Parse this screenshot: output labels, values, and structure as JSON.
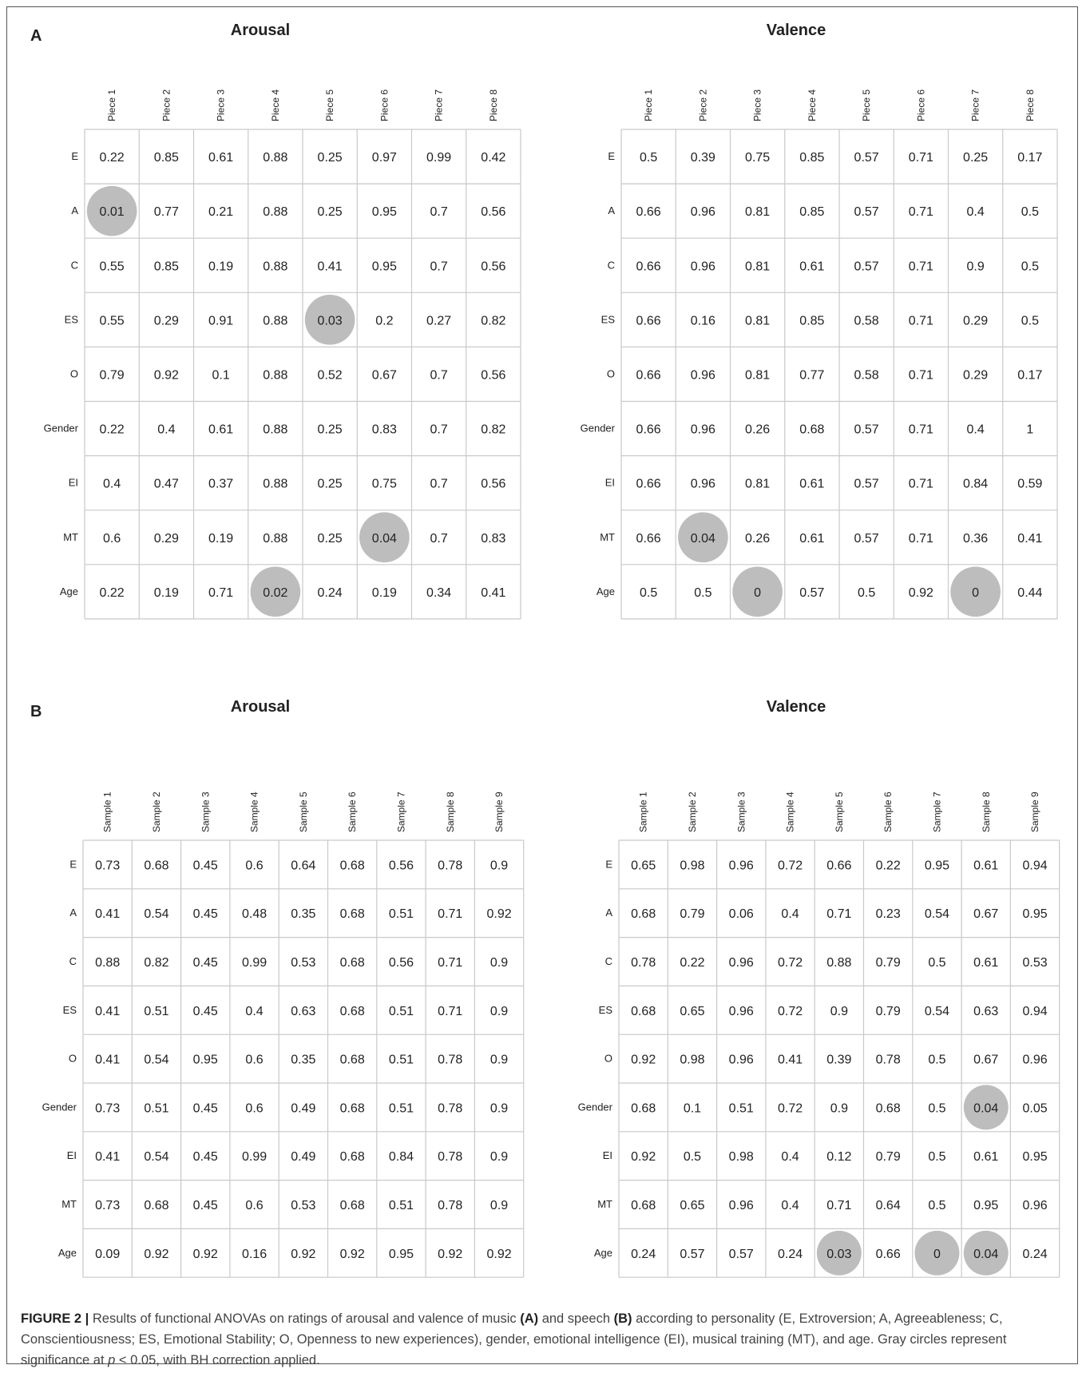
{
  "panel_labels": {
    "a": "A",
    "b": "B"
  },
  "caption": {
    "figure_label": "FIGURE 2 |",
    "text_1": " Results of functional ANOVAs on ratings of arousal and valence of music ",
    "bold_a": "(A)",
    "text_2": " and speech ",
    "bold_b": "(B)",
    "text_3": " according to personality (E, Extroversion; A, Agreeableness; C, Conscientiousness; ES, Emotional Stability; O, Openness to new experiences), gender, emotional intelligence (EI), musical training (MT), and age. Gray circles represent significance at ",
    "p_symbol": "p",
    "text_4": " < 0.05, with BH correction applied."
  },
  "colors": {
    "grid": "#c9c9c9",
    "circle": "#bdbdbd",
    "text": "#222222"
  },
  "chart_data": [
    {
      "type": "table",
      "title": "Arousal",
      "panel": "A",
      "columns": [
        "Piece 1",
        "Piece 2",
        "Piece 3",
        "Piece 4",
        "Piece 5",
        "Piece 6",
        "Piece 7",
        "Piece 8"
      ],
      "rows": [
        "E",
        "A",
        "C",
        "ES",
        "O",
        "Gender",
        "EI",
        "MT",
        "Age"
      ],
      "values": [
        [
          "0.22",
          "0.85",
          "0.61",
          "0.88",
          "0.25",
          "0.97",
          "0.99",
          "0.42"
        ],
        [
          "0.01",
          "0.77",
          "0.21",
          "0.88",
          "0.25",
          "0.95",
          "0.7",
          "0.56"
        ],
        [
          "0.55",
          "0.85",
          "0.19",
          "0.88",
          "0.41",
          "0.95",
          "0.7",
          "0.56"
        ],
        [
          "0.55",
          "0.29",
          "0.91",
          "0.88",
          "0.03",
          "0.2",
          "0.27",
          "0.82"
        ],
        [
          "0.79",
          "0.92",
          "0.1",
          "0.88",
          "0.52",
          "0.67",
          "0.7",
          "0.56"
        ],
        [
          "0.22",
          "0.4",
          "0.61",
          "0.88",
          "0.25",
          "0.83",
          "0.7",
          "0.82"
        ],
        [
          "0.4",
          "0.47",
          "0.37",
          "0.88",
          "0.25",
          "0.75",
          "0.7",
          "0.56"
        ],
        [
          "0.6",
          "0.29",
          "0.19",
          "0.88",
          "0.25",
          "0.04",
          "0.7",
          "0.83"
        ],
        [
          "0.22",
          "0.19",
          "0.71",
          "0.02",
          "0.24",
          "0.19",
          "0.34",
          "0.41"
        ]
      ],
      "significant": [
        [
          1,
          0
        ],
        [
          3,
          4
        ],
        [
          7,
          5
        ],
        [
          8,
          3
        ]
      ]
    },
    {
      "type": "table",
      "title": "Valence",
      "panel": "A",
      "columns": [
        "Piece 1",
        "Piece 2",
        "Piece 3",
        "Piece 4",
        "Piece 5",
        "Piece 6",
        "Piece 7",
        "Piece 8"
      ],
      "rows": [
        "E",
        "A",
        "C",
        "ES",
        "O",
        "Gender",
        "EI",
        "MT",
        "Age"
      ],
      "values": [
        [
          "0.5",
          "0.39",
          "0.75",
          "0.85",
          "0.57",
          "0.71",
          "0.25",
          "0.17"
        ],
        [
          "0.66",
          "0.96",
          "0.81",
          "0.85",
          "0.57",
          "0.71",
          "0.4",
          "0.5"
        ],
        [
          "0.66",
          "0.96",
          "0.81",
          "0.61",
          "0.57",
          "0.71",
          "0.9",
          "0.5"
        ],
        [
          "0.66",
          "0.16",
          "0.81",
          "0.85",
          "0.58",
          "0.71",
          "0.29",
          "0.5"
        ],
        [
          "0.66",
          "0.96",
          "0.81",
          "0.77",
          "0.58",
          "0.71",
          "0.29",
          "0.17"
        ],
        [
          "0.66",
          "0.96",
          "0.26",
          "0.68",
          "0.57",
          "0.71",
          "0.4",
          "1"
        ],
        [
          "0.66",
          "0.96",
          "0.81",
          "0.61",
          "0.57",
          "0.71",
          "0.84",
          "0.59"
        ],
        [
          "0.66",
          "0.04",
          "0.26",
          "0.61",
          "0.57",
          "0.71",
          "0.36",
          "0.41"
        ],
        [
          "0.5",
          "0.5",
          "0",
          "0.57",
          "0.5",
          "0.92",
          "0",
          "0.44"
        ]
      ],
      "significant": [
        [
          7,
          1
        ],
        [
          8,
          2
        ],
        [
          8,
          6
        ]
      ]
    },
    {
      "type": "table",
      "title": "Arousal",
      "panel": "B",
      "columns": [
        "Sample 1",
        "Sample 2",
        "Sample 3",
        "Sample 4",
        "Sample 5",
        "Sample 6",
        "Sample 7",
        "Sample 8",
        "Sample 9"
      ],
      "rows": [
        "E",
        "A",
        "C",
        "ES",
        "O",
        "Gender",
        "EI",
        "MT",
        "Age"
      ],
      "values": [
        [
          "0.73",
          "0.68",
          "0.45",
          "0.6",
          "0.64",
          "0.68",
          "0.56",
          "0.78",
          "0.9"
        ],
        [
          "0.41",
          "0.54",
          "0.45",
          "0.48",
          "0.35",
          "0.68",
          "0.51",
          "0.71",
          "0.92"
        ],
        [
          "0.88",
          "0.82",
          "0.45",
          "0.99",
          "0.53",
          "0.68",
          "0.56",
          "0.71",
          "0.9"
        ],
        [
          "0.41",
          "0.51",
          "0.45",
          "0.4",
          "0.63",
          "0.68",
          "0.51",
          "0.71",
          "0.9"
        ],
        [
          "0.41",
          "0.54",
          "0.95",
          "0.6",
          "0.35",
          "0.68",
          "0.51",
          "0.78",
          "0.9"
        ],
        [
          "0.73",
          "0.51",
          "0.45",
          "0.6",
          "0.49",
          "0.68",
          "0.51",
          "0.78",
          "0.9"
        ],
        [
          "0.41",
          "0.54",
          "0.45",
          "0.99",
          "0.49",
          "0.68",
          "0.84",
          "0.78",
          "0.9"
        ],
        [
          "0.73",
          "0.68",
          "0.45",
          "0.6",
          "0.53",
          "0.68",
          "0.51",
          "0.78",
          "0.9"
        ],
        [
          "0.09",
          "0.92",
          "0.92",
          "0.16",
          "0.92",
          "0.92",
          "0.95",
          "0.92",
          "0.92"
        ]
      ],
      "significant": []
    },
    {
      "type": "table",
      "title": "Valence",
      "panel": "B",
      "columns": [
        "Sample 1",
        "Sample 2",
        "Sample 3",
        "Sample 4",
        "Sample 5",
        "Sample 6",
        "Sample 7",
        "Sample 8",
        "Sample 9"
      ],
      "rows": [
        "E",
        "A",
        "C",
        "ES",
        "O",
        "Gender",
        "EI",
        "MT",
        "Age"
      ],
      "values": [
        [
          "0.65",
          "0.98",
          "0.96",
          "0.72",
          "0.66",
          "0.22",
          "0.95",
          "0.61",
          "0.94"
        ],
        [
          "0.68",
          "0.79",
          "0.06",
          "0.4",
          "0.71",
          "0.23",
          "0.54",
          "0.67",
          "0.95"
        ],
        [
          "0.78",
          "0.22",
          "0.96",
          "0.72",
          "0.88",
          "0.79",
          "0.5",
          "0.61",
          "0.53"
        ],
        [
          "0.68",
          "0.65",
          "0.96",
          "0.72",
          "0.9",
          "0.79",
          "0.54",
          "0.63",
          "0.94"
        ],
        [
          "0.92",
          "0.98",
          "0.96",
          "0.41",
          "0.39",
          "0.78",
          "0.5",
          "0.67",
          "0.96"
        ],
        [
          "0.68",
          "0.1",
          "0.51",
          "0.72",
          "0.9",
          "0.68",
          "0.5",
          "0.04",
          "0.05"
        ],
        [
          "0.92",
          "0.5",
          "0.98",
          "0.4",
          "0.12",
          "0.79",
          "0.5",
          "0.61",
          "0.95"
        ],
        [
          "0.68",
          "0.65",
          "0.96",
          "0.4",
          "0.71",
          "0.64",
          "0.5",
          "0.95",
          "0.96"
        ],
        [
          "0.24",
          "0.57",
          "0.57",
          "0.24",
          "0.03",
          "0.66",
          "0",
          "0.04",
          "0.24"
        ]
      ],
      "significant": [
        [
          5,
          7
        ],
        [
          8,
          4
        ],
        [
          8,
          6
        ],
        [
          8,
          7
        ]
      ]
    }
  ]
}
